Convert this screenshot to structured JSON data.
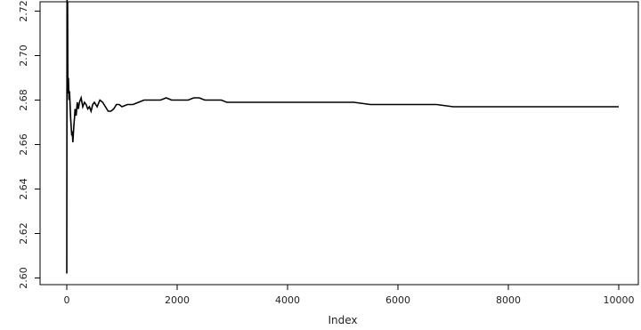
{
  "chart_data": {
    "type": "line",
    "title": "",
    "xlabel": "Index",
    "ylabel": "",
    "xlim": [
      0,
      10000
    ],
    "ylim": [
      2.6,
      2.72
    ],
    "xticks": [
      0,
      2000,
      4000,
      6000,
      8000,
      10000
    ],
    "yticks": [
      2.6,
      2.62,
      2.64,
      2.66,
      2.68,
      2.7,
      2.72
    ],
    "xtick_labels": [
      "0",
      "2000",
      "4000",
      "6000",
      "8000",
      "10000"
    ],
    "ytick_labels": [
      "2.60",
      "2.62",
      "2.64",
      "2.66",
      "2.68",
      "2.70",
      "2.72"
    ],
    "grid": false,
    "line_color": "#000000",
    "series": [
      {
        "x": [
          0,
          5,
          10,
          15,
          20,
          25,
          30,
          40,
          50,
          60,
          70,
          80,
          90,
          100,
          110,
          120,
          130,
          140,
          150,
          170,
          190,
          210,
          230,
          260,
          290,
          320,
          350,
          380,
          410,
          440,
          470,
          500,
          550,
          600,
          650,
          700,
          750,
          800,
          850,
          900,
          950,
          1000,
          1100,
          1200,
          1300,
          1400,
          1500,
          1600,
          1700,
          1800,
          1900,
          2000,
          2100,
          2200,
          2300,
          2400,
          2500,
          2600,
          2700,
          2800,
          2900,
          3000,
          3200,
          3400,
          3600,
          3800,
          4000,
          4300,
          4600,
          4900,
          5200,
          5500,
          5800,
          6100,
          6400,
          6700,
          7000,
          7300,
          7600,
          7900,
          8200,
          8500,
          8800,
          9100,
          9400,
          9700,
          10000
        ],
        "y": [
          2.602,
          2.731,
          2.69,
          2.724,
          2.688,
          2.683,
          2.69,
          2.68,
          2.684,
          2.678,
          2.672,
          2.668,
          2.664,
          2.666,
          2.661,
          2.665,
          2.669,
          2.672,
          2.676,
          2.673,
          2.679,
          2.676,
          2.679,
          2.681,
          2.677,
          2.679,
          2.678,
          2.676,
          2.677,
          2.675,
          2.678,
          2.679,
          2.677,
          2.68,
          2.679,
          2.677,
          2.675,
          2.675,
          2.676,
          2.678,
          2.678,
          2.677,
          2.678,
          2.678,
          2.679,
          2.68,
          2.68,
          2.68,
          2.68,
          2.681,
          2.68,
          2.68,
          2.68,
          2.68,
          2.681,
          2.681,
          2.68,
          2.68,
          2.68,
          2.68,
          2.679,
          2.679,
          2.679,
          2.679,
          2.679,
          2.679,
          2.679,
          2.679,
          2.679,
          2.679,
          2.679,
          2.678,
          2.678,
          2.678,
          2.678,
          2.678,
          2.677,
          2.677,
          2.677,
          2.677,
          2.677,
          2.677,
          2.677,
          2.677,
          2.677,
          2.677,
          2.677
        ]
      }
    ]
  }
}
